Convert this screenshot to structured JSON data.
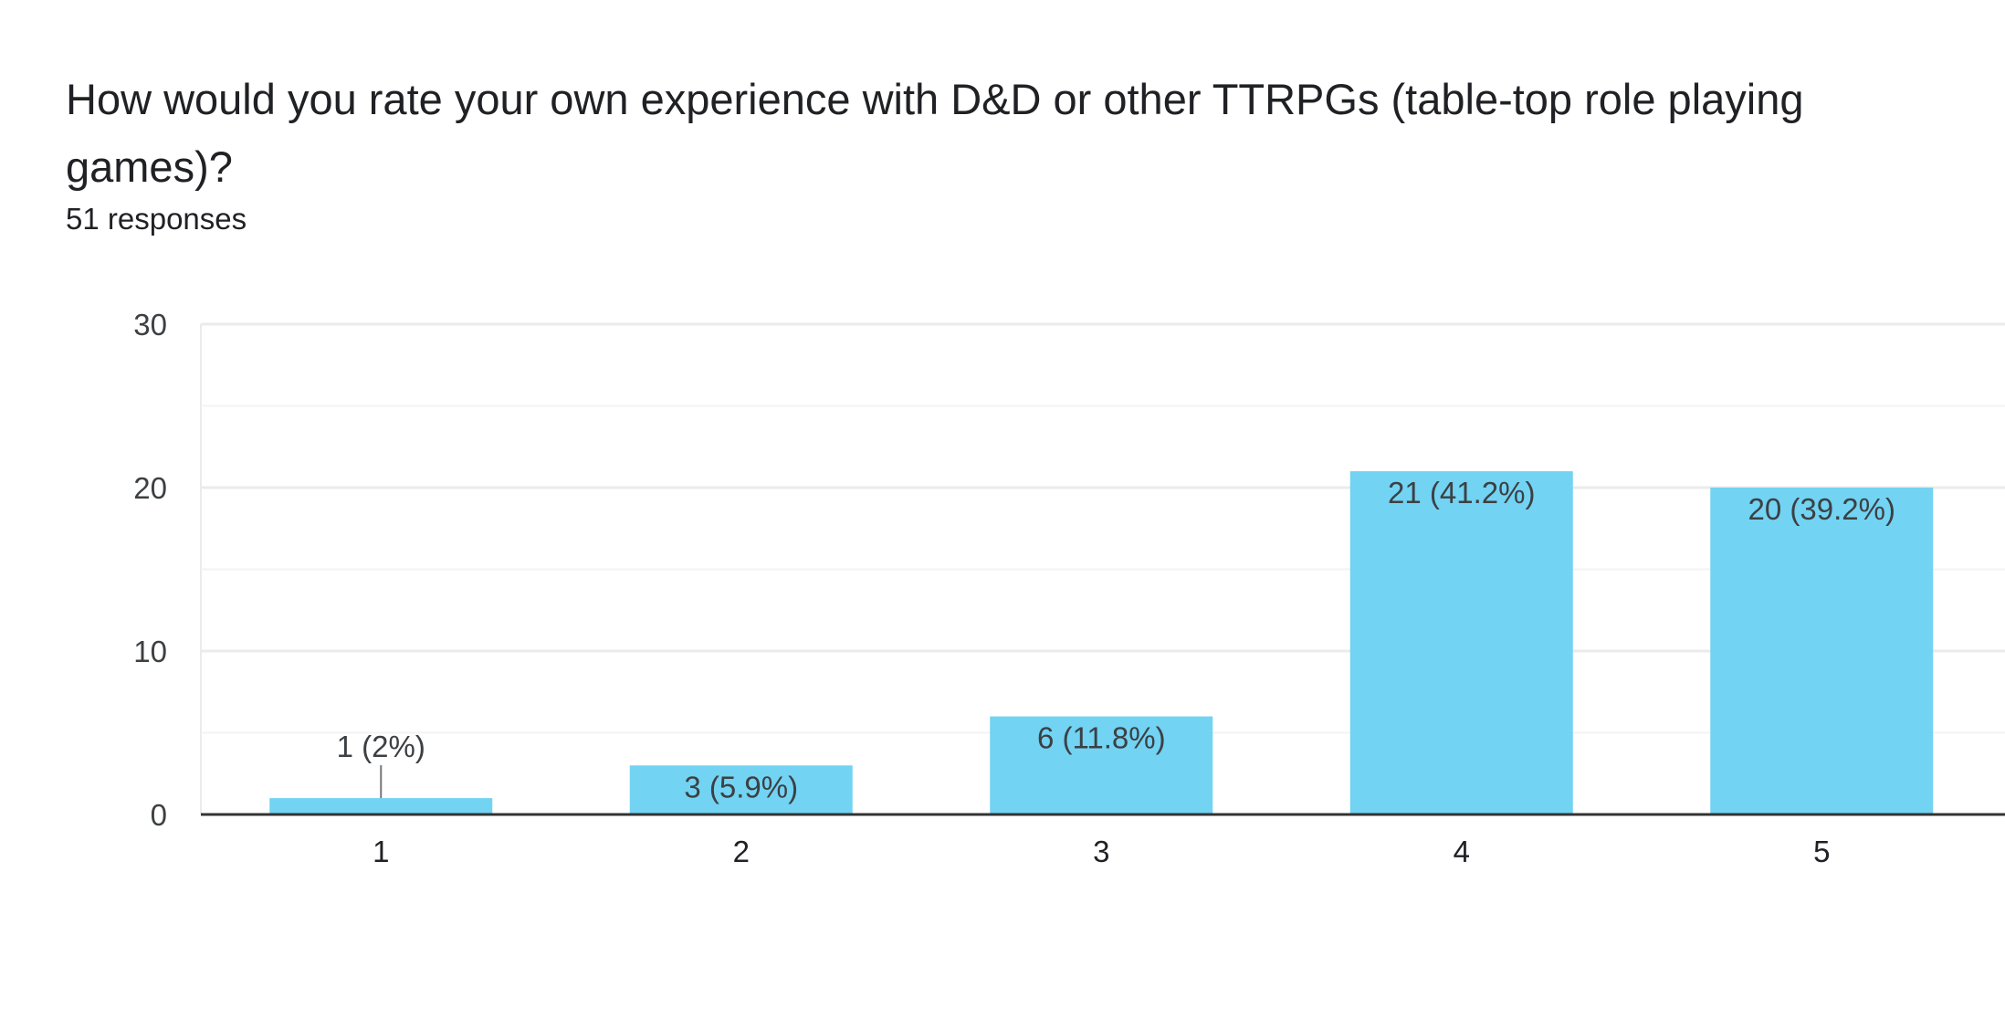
{
  "question": {
    "title": "How would you rate your own experience with D&D or other TTRPGs (table-top role playing games)?",
    "responses": "51 responses"
  },
  "colors": {
    "bar": "#72d3f3",
    "grid": "#ebebeb",
    "baseline": "#333333",
    "leader": "#777777"
  },
  "chart_data": {
    "type": "bar",
    "title": "How would you rate your own experience with D&D or other TTRPGs (table-top role playing games)?",
    "categories": [
      "1",
      "2",
      "3",
      "4",
      "5"
    ],
    "values": [
      1,
      3,
      6,
      21,
      20
    ],
    "data_labels": [
      "1 (2%)",
      "3 (5.9%)",
      "6 (11.8%)",
      "21 (41.2%)",
      "20 (39.2%)"
    ],
    "ylim": [
      0,
      30
    ],
    "yticks": [
      0,
      10,
      20,
      30
    ],
    "minor_gridlines": [
      5,
      15,
      25
    ],
    "grid": true,
    "xlabel": "",
    "ylabel": ""
  }
}
